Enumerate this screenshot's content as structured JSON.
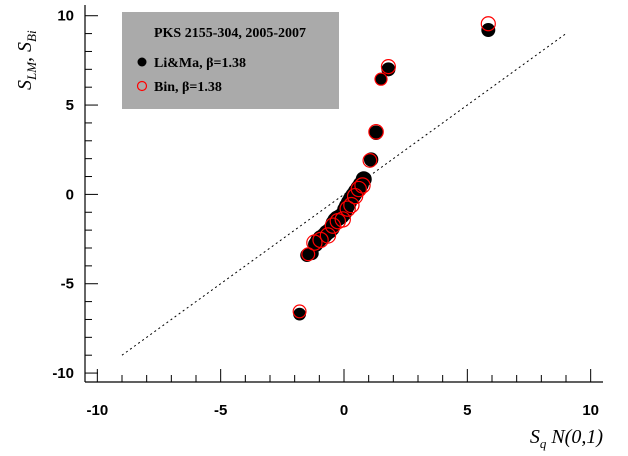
{
  "chart_data": {
    "type": "scatter",
    "title": "",
    "xlabel": "S_q N(0,1)",
    "ylabel": "S_LM, S_Bi",
    "xlim": [
      -10.5,
      10.5
    ],
    "ylim": [
      -10.5,
      10.6
    ],
    "x_ticks": [
      -10,
      -5,
      0,
      5,
      10
    ],
    "y_ticks": [
      -10,
      -5,
      0,
      5,
      10
    ],
    "x_tick_labels": [
      "-10",
      "-5",
      "0",
      "5",
      "10"
    ],
    "y_tick_labels": [
      "-10",
      "-5",
      "0",
      "5",
      "10"
    ],
    "grid": false,
    "legend": {
      "title": "PKS 2155-304, 2005-2007",
      "placement": "top-left",
      "background": "#aaaaaa",
      "entries": [
        {
          "label": "Li&Ma, β=1.38",
          "marker": "filled-circle",
          "color": "#000000"
        },
        {
          "label": "Bin, β=1.38",
          "marker": "open-circle",
          "color": "#ff0000"
        }
      ]
    },
    "reference_line": {
      "style": "dotted",
      "x": [
        -9,
        9
      ],
      "y": [
        -9,
        9
      ]
    },
    "series": [
      {
        "name": "Li&Ma, β=1.38",
        "marker": "filled-circle",
        "color": "#000000",
        "points": [
          {
            "x": -1.8,
            "y": -6.7,
            "size": 0.6
          },
          {
            "x": -1.5,
            "y": -3.4,
            "size": 0.7
          },
          {
            "x": -1.3,
            "y": -3.3,
            "size": 0.7
          },
          {
            "x": -1.15,
            "y": -2.8,
            "size": 0.9
          },
          {
            "x": -1.05,
            "y": -2.6,
            "size": 1.0
          },
          {
            "x": -0.95,
            "y": -2.45,
            "size": 1.0
          },
          {
            "x": -0.8,
            "y": -2.3,
            "size": 1.0
          },
          {
            "x": -0.7,
            "y": -2.15,
            "size": 1.0
          },
          {
            "x": -0.6,
            "y": -2.05,
            "size": 1.0
          },
          {
            "x": -0.5,
            "y": -1.9,
            "size": 1.0
          },
          {
            "x": -0.42,
            "y": -1.6,
            "size": 1.0
          },
          {
            "x": -0.35,
            "y": -1.45,
            "size": 1.0
          },
          {
            "x": -0.28,
            "y": -1.35,
            "size": 1.0
          },
          {
            "x": -0.2,
            "y": -1.3,
            "size": 1.0
          },
          {
            "x": -0.1,
            "y": -1.2,
            "size": 1.0
          },
          {
            "x": 0.0,
            "y": -1.05,
            "size": 1.0
          },
          {
            "x": 0.05,
            "y": -0.85,
            "size": 1.0
          },
          {
            "x": 0.12,
            "y": -0.65,
            "size": 1.0
          },
          {
            "x": 0.2,
            "y": -0.45,
            "size": 1.0
          },
          {
            "x": 0.28,
            "y": -0.25,
            "size": 1.0
          },
          {
            "x": 0.38,
            "y": -0.05,
            "size": 1.0
          },
          {
            "x": 0.48,
            "y": 0.15,
            "size": 1.0
          },
          {
            "x": 0.58,
            "y": 0.35,
            "size": 1.0
          },
          {
            "x": 0.68,
            "y": 0.55,
            "size": 1.0
          },
          {
            "x": 0.8,
            "y": 0.85,
            "size": 1.0
          },
          {
            "x": 1.1,
            "y": 1.95,
            "size": 0.8
          },
          {
            "x": 1.3,
            "y": 3.45,
            "size": 0.8
          },
          {
            "x": 1.5,
            "y": 6.45,
            "size": 0.5
          },
          {
            "x": 1.8,
            "y": 7.0,
            "size": 0.75
          },
          {
            "x": 5.85,
            "y": 9.2,
            "size": 0.75
          }
        ]
      },
      {
        "name": "Bin, β=1.38",
        "marker": "open-circle",
        "color": "#ff0000",
        "points": [
          {
            "x": -1.8,
            "y": -6.55,
            "size": 0.6
          },
          {
            "x": -1.45,
            "y": -3.35,
            "size": 0.6
          },
          {
            "x": -1.2,
            "y": -2.7,
            "size": 0.9
          },
          {
            "x": -0.95,
            "y": -2.55,
            "size": 0.9
          },
          {
            "x": -0.65,
            "y": -2.3,
            "size": 0.9
          },
          {
            "x": -0.45,
            "y": -1.75,
            "size": 0.9
          },
          {
            "x": -0.25,
            "y": -1.5,
            "size": 0.9
          },
          {
            "x": -0.05,
            "y": -1.4,
            "size": 0.9
          },
          {
            "x": 0.15,
            "y": -0.8,
            "size": 0.9
          },
          {
            "x": 0.3,
            "y": -0.6,
            "size": 0.9
          },
          {
            "x": 0.45,
            "y": -0.1,
            "size": 0.9
          },
          {
            "x": 0.6,
            "y": 0.3,
            "size": 0.9
          },
          {
            "x": 0.75,
            "y": 0.5,
            "size": 0.9
          },
          {
            "x": 1.05,
            "y": 1.9,
            "size": 0.7
          },
          {
            "x": 1.3,
            "y": 3.5,
            "size": 0.8
          },
          {
            "x": 1.5,
            "y": 6.45,
            "size": 0.5
          },
          {
            "x": 1.8,
            "y": 7.15,
            "size": 0.75
          },
          {
            "x": 5.85,
            "y": 9.55,
            "size": 0.75
          }
        ]
      }
    ]
  }
}
